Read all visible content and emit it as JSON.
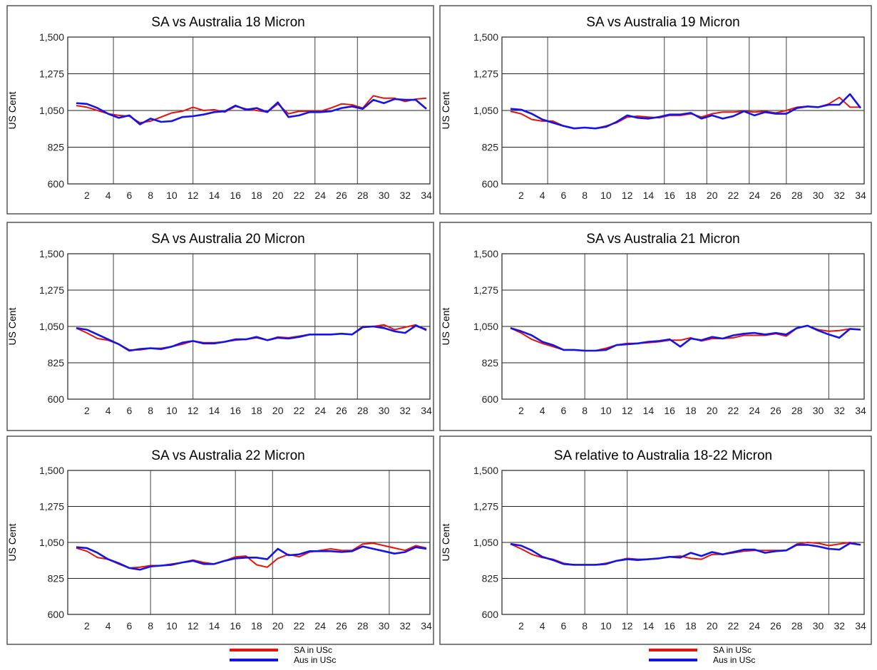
{
  "figure_legend": {
    "items": [
      {
        "label": "SA in USc",
        "color": "#e8120c"
      },
      {
        "label": "Aus in USc",
        "color": "#1414e6"
      }
    ]
  },
  "chart_data": [
    {
      "type": "line",
      "title": "SA vs Australia 18 Micron",
      "ylabel": "US Cent",
      "xlabel": "",
      "ylim": [
        600,
        1500
      ],
      "xlim": [
        1,
        34
      ],
      "yticks": [
        "600",
        "825",
        "1,050",
        "1,275",
        "1,500"
      ],
      "xticks": [
        "2",
        "4",
        "6",
        "8",
        "10",
        "12",
        "14",
        "16",
        "18",
        "20",
        "22",
        "24",
        "26",
        "28",
        "30",
        "32",
        "34"
      ],
      "vlines": [
        4.5,
        12,
        23.5,
        27.5
      ],
      "grid": true,
      "legend": "none",
      "x": [
        1,
        2,
        3,
        4,
        5,
        6,
        7,
        8,
        9,
        10,
        11,
        12,
        13,
        14,
        15,
        16,
        17,
        18,
        19,
        20,
        21,
        22,
        23,
        24,
        25,
        26,
        27,
        28,
        29,
        30,
        31,
        32,
        33,
        34
      ],
      "series": [
        {
          "name": "SA in USc",
          "color": "#e8120c",
          "values": [
            1080,
            1070,
            1050,
            1030,
            1020,
            1015,
            975,
            985,
            1010,
            1035,
            1045,
            1070,
            1050,
            1055,
            1040,
            1075,
            1060,
            1050,
            1040,
            1090,
            1030,
            1045,
            1045,
            1045,
            1065,
            1090,
            1085,
            1065,
            1140,
            1125,
            1125,
            1105,
            1120,
            1125
          ]
        },
        {
          "name": "Aus in USc",
          "color": "#1414e6",
          "values": [
            1095,
            1090,
            1065,
            1030,
            1005,
            1020,
            965,
            1000,
            980,
            985,
            1010,
            1015,
            1025,
            1040,
            1045,
            1080,
            1055,
            1065,
            1040,
            1100,
            1010,
            1020,
            1040,
            1040,
            1045,
            1065,
            1075,
            1060,
            1115,
            1095,
            1120,
            1115,
            1115,
            1060
          ]
        }
      ]
    },
    {
      "type": "line",
      "title": "SA vs Australia 19 Micron",
      "ylabel": "US Cent",
      "xlabel": "",
      "ylim": [
        600,
        1500
      ],
      "xlim": [
        1,
        34
      ],
      "yticks": [
        "600",
        "825",
        "1,050",
        "1,275",
        "1,500"
      ],
      "xticks": [
        "2",
        "4",
        "6",
        "8",
        "10",
        "12",
        "14",
        "16",
        "18",
        "20",
        "22",
        "24",
        "26",
        "28",
        "30",
        "32",
        "34"
      ],
      "vlines": [
        4.5,
        15.5,
        19.5,
        23.5,
        27
      ],
      "grid": true,
      "legend": "none",
      "x": [
        1,
        2,
        3,
        4,
        5,
        6,
        7,
        8,
        9,
        10,
        11,
        12,
        13,
        14,
        15,
        16,
        17,
        18,
        19,
        20,
        21,
        22,
        23,
        24,
        25,
        26,
        27,
        28,
        29,
        30,
        31,
        32,
        33,
        34
      ],
      "series": [
        {
          "name": "SA in USc",
          "color": "#e8120c",
          "values": [
            1045,
            1030,
            995,
            985,
            985,
            955,
            940,
            945,
            940,
            955,
            975,
            1010,
            1015,
            1010,
            1005,
            1020,
            1020,
            1030,
            1010,
            1030,
            1040,
            1040,
            1045,
            1040,
            1045,
            1035,
            1050,
            1070,
            1075,
            1070,
            1090,
            1130,
            1070,
            1070
          ]
        },
        {
          "name": "Aus in USc",
          "color": "#1414e6",
          "values": [
            1060,
            1055,
            1030,
            995,
            975,
            955,
            940,
            945,
            940,
            950,
            980,
            1020,
            1005,
            1000,
            1010,
            1025,
            1025,
            1035,
            1000,
            1020,
            1000,
            1015,
            1045,
            1020,
            1040,
            1030,
            1030,
            1065,
            1075,
            1070,
            1085,
            1085,
            1150,
            1065
          ]
        }
      ]
    },
    {
      "type": "line",
      "title": "SA vs Australia 20 Micron",
      "ylabel": "US Cent",
      "xlabel": "",
      "ylim": [
        600,
        1500
      ],
      "xlim": [
        1,
        34
      ],
      "yticks": [
        "600",
        "825",
        "1,050",
        "1,275",
        "1,500"
      ],
      "xticks": [
        "2",
        "4",
        "6",
        "8",
        "10",
        "12",
        "14",
        "16",
        "18",
        "20",
        "22",
        "24",
        "26",
        "28",
        "30",
        "32",
        "34"
      ],
      "vlines": [
        4.5,
        12,
        23.5,
        27.5
      ],
      "grid": true,
      "legend": "none",
      "x": [
        1,
        2,
        3,
        4,
        5,
        6,
        7,
        8,
        9,
        10,
        11,
        12,
        13,
        14,
        15,
        16,
        17,
        18,
        19,
        20,
        21,
        22,
        23,
        24,
        25,
        26,
        27,
        28,
        29,
        30,
        31,
        32,
        33,
        34
      ],
      "series": [
        {
          "name": "SA in USc",
          "color": "#e8120c",
          "values": [
            1040,
            1010,
            975,
            965,
            940,
            905,
            905,
            915,
            915,
            925,
            940,
            960,
            950,
            950,
            955,
            965,
            970,
            980,
            965,
            985,
            980,
            990,
            1000,
            1000,
            1000,
            1005,
            1000,
            1050,
            1050,
            1060,
            1030,
            1045,
            1060,
            1025
          ]
        },
        {
          "name": "Aus in USc",
          "color": "#1414e6",
          "values": [
            1040,
            1030,
            1000,
            970,
            940,
            900,
            910,
            915,
            910,
            925,
            950,
            960,
            945,
            945,
            955,
            970,
            970,
            985,
            965,
            980,
            975,
            985,
            1000,
            1000,
            1000,
            1005,
            1000,
            1045,
            1050,
            1040,
            1020,
            1010,
            1055,
            1030
          ]
        }
      ]
    },
    {
      "type": "line",
      "title": "SA vs Australia 21 Micron",
      "ylabel": "US Cent",
      "xlabel": "",
      "ylim": [
        600,
        1500
      ],
      "xlim": [
        1,
        34
      ],
      "yticks": [
        "600",
        "825",
        "1,050",
        "1,275",
        "1,500"
      ],
      "xticks": [
        "2",
        "4",
        "6",
        "8",
        "10",
        "12",
        "14",
        "16",
        "18",
        "20",
        "22",
        "24",
        "26",
        "28",
        "30",
        "32",
        "34"
      ],
      "vlines": [
        8,
        12,
        31
      ],
      "grid": true,
      "legend": "none",
      "x": [
        1,
        2,
        3,
        4,
        5,
        6,
        7,
        8,
        9,
        10,
        11,
        12,
        13,
        14,
        15,
        16,
        17,
        18,
        19,
        20,
        21,
        22,
        23,
        24,
        25,
        26,
        27,
        28,
        29,
        30,
        31,
        32,
        33,
        34
      ],
      "series": [
        {
          "name": "SA in USc",
          "color": "#e8120c",
          "values": [
            1040,
            1010,
            970,
            945,
            925,
            905,
            905,
            900,
            900,
            915,
            935,
            945,
            945,
            950,
            955,
            965,
            965,
            980,
            960,
            975,
            975,
            980,
            995,
            995,
            995,
            1005,
            990,
            1040,
            1055,
            1030,
            1020,
            1025,
            1035,
            1030
          ]
        },
        {
          "name": "Aus in USc",
          "color": "#1414e6",
          "values": [
            1040,
            1020,
            995,
            955,
            935,
            905,
            905,
            900,
            900,
            905,
            935,
            940,
            945,
            955,
            960,
            970,
            925,
            975,
            965,
            985,
            975,
            995,
            1005,
            1010,
            1000,
            1010,
            1000,
            1040,
            1055,
            1025,
            1000,
            980,
            1035,
            1030
          ]
        }
      ]
    },
    {
      "type": "line",
      "title": "SA vs Australia 22 Micron",
      "ylabel": "US Cent",
      "xlabel": "",
      "ylim": [
        600,
        1500
      ],
      "xlim": [
        1,
        34
      ],
      "yticks": [
        "600",
        "825",
        "1,050",
        "1,275",
        "1,500"
      ],
      "xticks": [
        "2",
        "4",
        "6",
        "8",
        "10",
        "12",
        "14",
        "16",
        "18",
        "20",
        "22",
        "24",
        "26",
        "28",
        "30",
        "32",
        "34"
      ],
      "vlines": [
        8,
        16,
        19.5,
        30.5
      ],
      "grid": true,
      "legend": "none",
      "x": [
        1,
        2,
        3,
        4,
        5,
        6,
        7,
        8,
        9,
        10,
        11,
        12,
        13,
        14,
        15,
        16,
        17,
        18,
        19,
        20,
        21,
        22,
        23,
        24,
        25,
        26,
        27,
        28,
        29,
        30,
        31,
        32,
        33,
        34
      ],
      "series": [
        {
          "name": "SA in USc",
          "color": "#e8120c",
          "values": [
            1015,
            995,
            955,
            945,
            915,
            890,
            895,
            905,
            905,
            915,
            925,
            940,
            925,
            915,
            935,
            960,
            965,
            910,
            895,
            950,
            975,
            960,
            990,
            1000,
            1010,
            1000,
            1000,
            1040,
            1045,
            1030,
            1015,
            1000,
            1030,
            1015
          ]
        },
        {
          "name": "Aus in USc",
          "color": "#1414e6",
          "values": [
            1020,
            1015,
            985,
            945,
            920,
            890,
            880,
            900,
            905,
            910,
            925,
            935,
            915,
            915,
            935,
            950,
            955,
            955,
            945,
            1010,
            970,
            975,
            995,
            995,
            995,
            990,
            995,
            1025,
            1010,
            995,
            980,
            990,
            1020,
            1010
          ]
        }
      ]
    },
    {
      "type": "line",
      "title": "SA relative to Australia 18-22 Micron",
      "ylabel": "US Cent",
      "xlabel": "",
      "ylim": [
        600,
        1500
      ],
      "xlim": [
        1,
        34
      ],
      "yticks": [
        "600",
        "825",
        "1,050",
        "1,275",
        "1,500"
      ],
      "xticks": [
        "2",
        "4",
        "6",
        "8",
        "10",
        "12",
        "14",
        "16",
        "18",
        "20",
        "22",
        "24",
        "26",
        "28",
        "30",
        "32",
        "34"
      ],
      "vlines": [
        8,
        12,
        31
      ],
      "grid": true,
      "legend": "none",
      "x": [
        1,
        2,
        3,
        4,
        5,
        6,
        7,
        8,
        9,
        10,
        11,
        12,
        13,
        14,
        15,
        16,
        17,
        18,
        19,
        20,
        21,
        22,
        23,
        24,
        25,
        26,
        27,
        28,
        29,
        30,
        31,
        32,
        33,
        34
      ],
      "series": [
        {
          "name": "SA in USc",
          "color": "#e8120c",
          "values": [
            1040,
            1010,
            975,
            955,
            945,
            920,
            910,
            910,
            910,
            920,
            935,
            950,
            945,
            945,
            950,
            960,
            965,
            950,
            945,
            975,
            975,
            985,
            995,
            1000,
            1000,
            1000,
            1000,
            1040,
            1050,
            1045,
            1030,
            1040,
            1050,
            1035
          ]
        },
        {
          "name": "Aus in USc",
          "color": "#1414e6",
          "values": [
            1040,
            1030,
            1000,
            960,
            940,
            915,
            910,
            910,
            910,
            915,
            935,
            945,
            940,
            945,
            950,
            960,
            955,
            985,
            965,
            990,
            975,
            990,
            1005,
            1005,
            985,
            995,
            1000,
            1035,
            1035,
            1025,
            1010,
            1005,
            1045,
            1035
          ]
        }
      ]
    }
  ]
}
